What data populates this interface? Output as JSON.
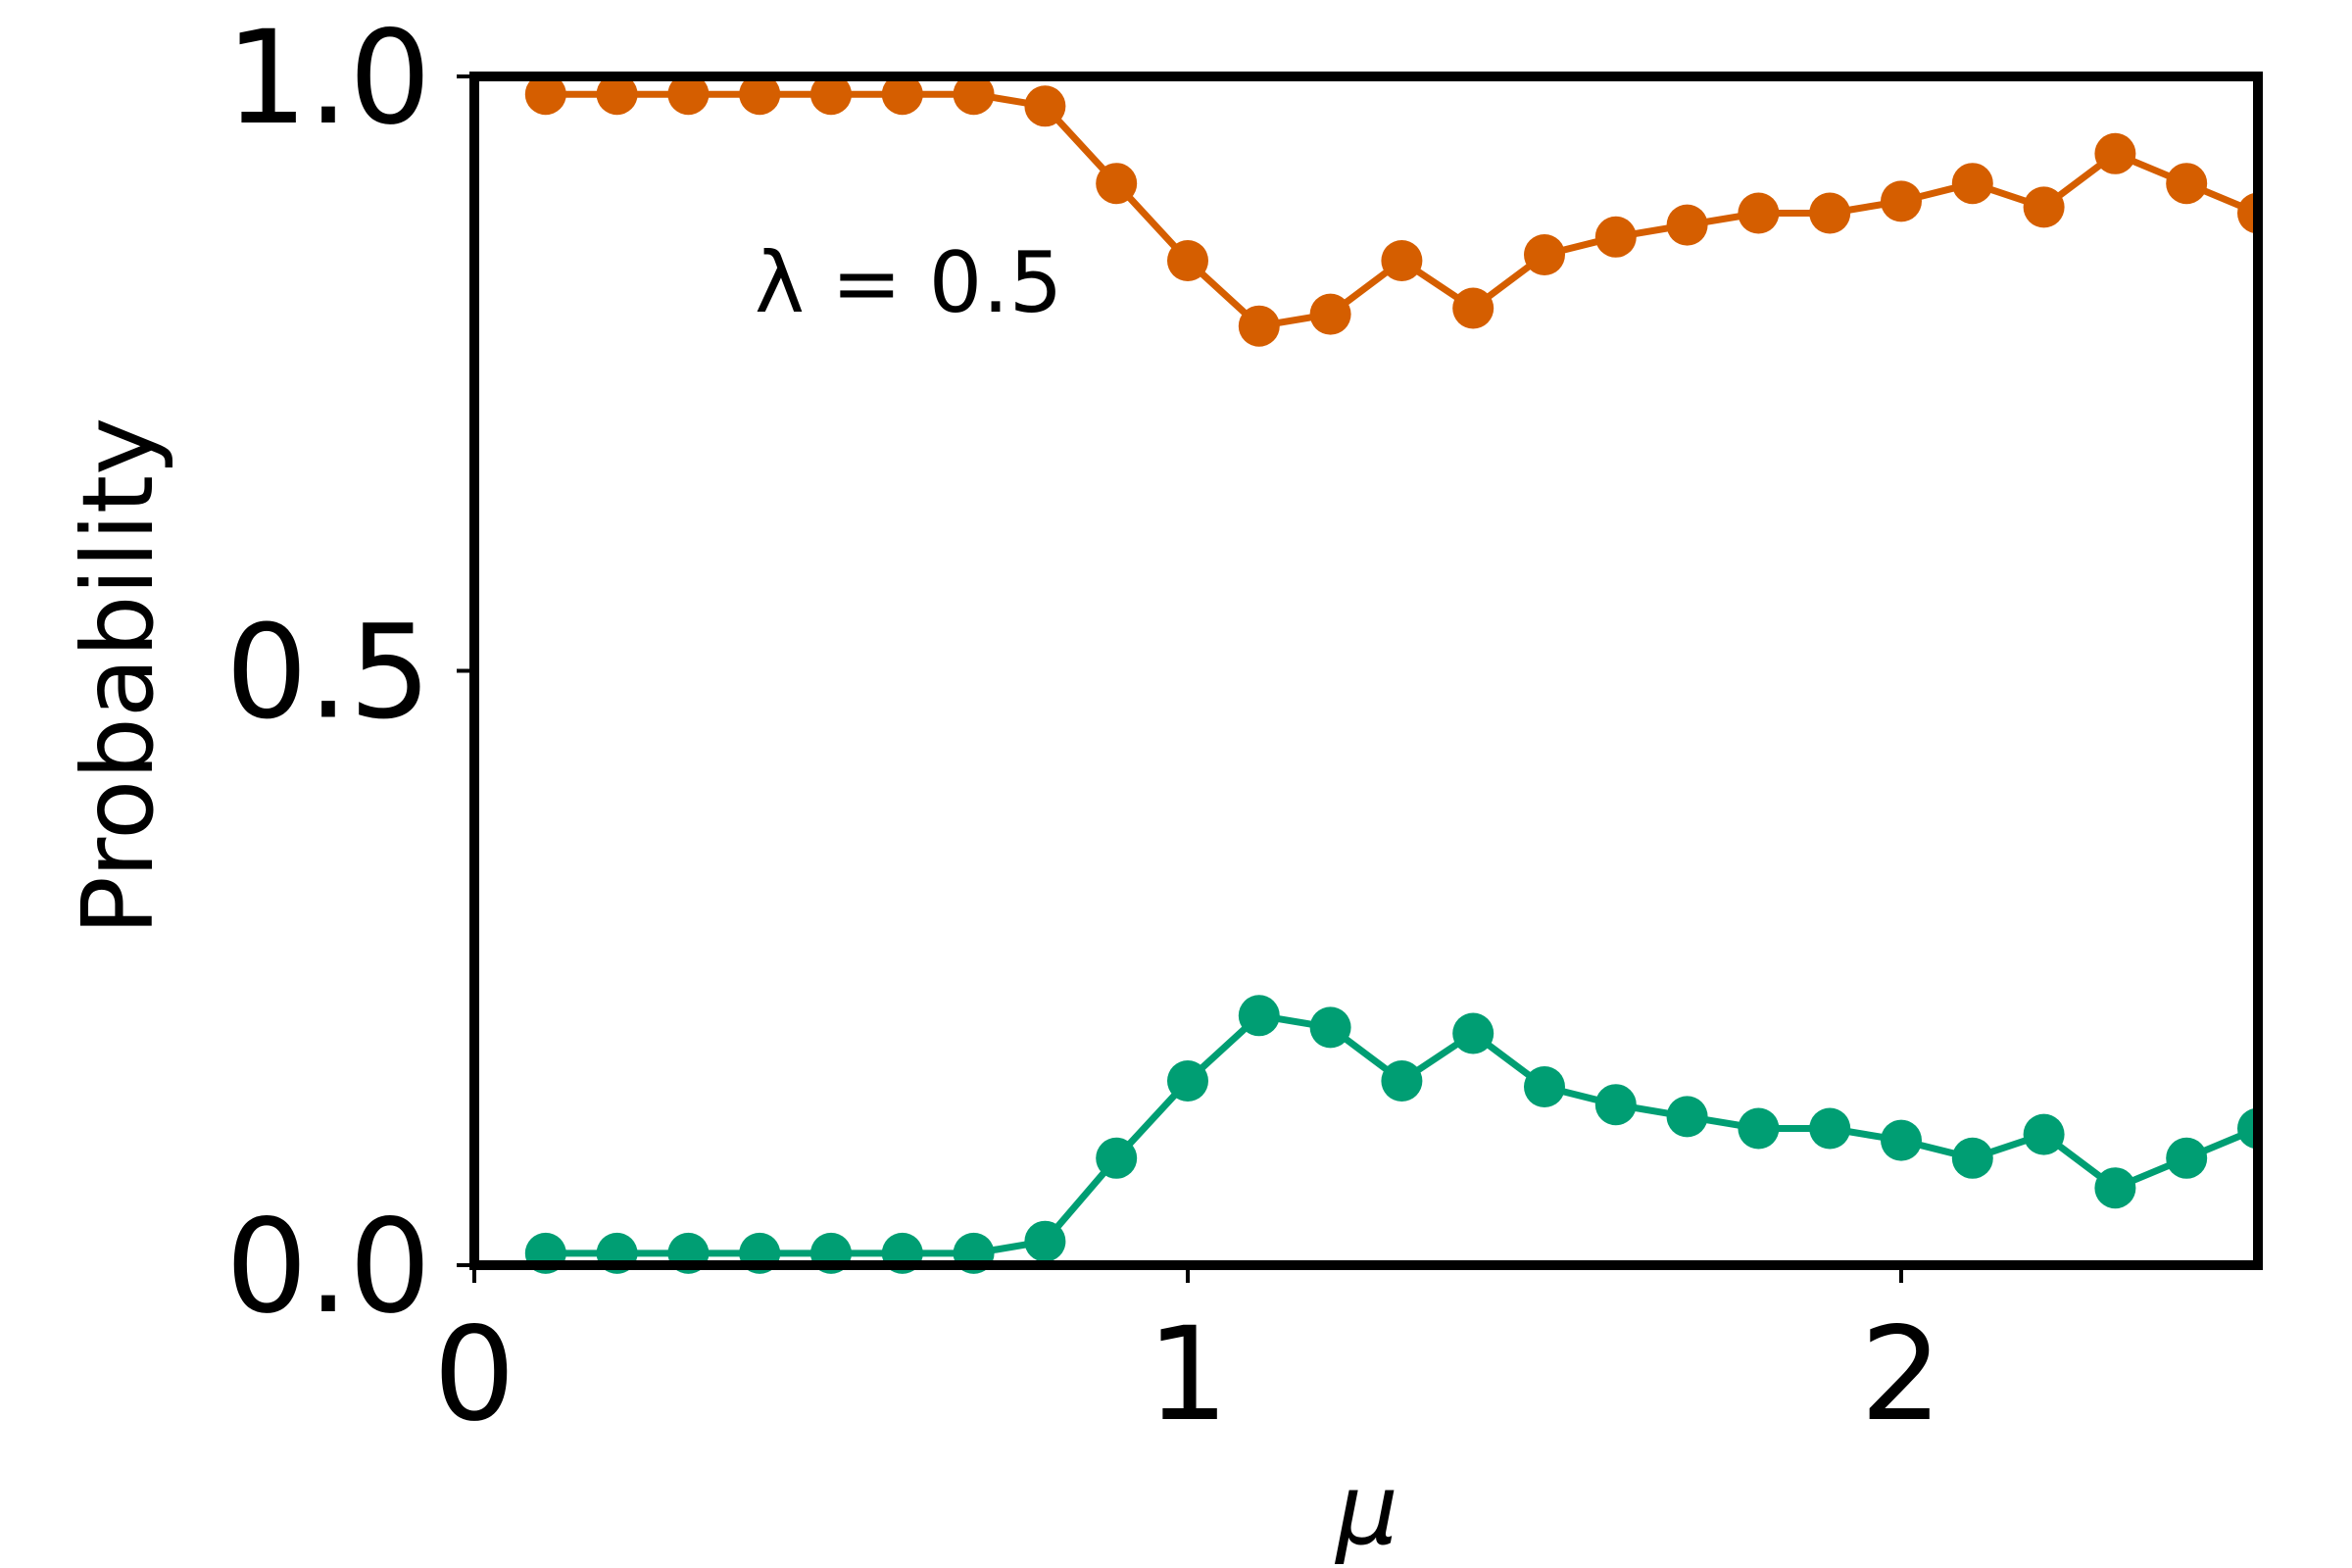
{
  "chart_data": {
    "type": "line",
    "title": "",
    "xlabel": "μ",
    "ylabel": "Probability",
    "xlim": [
      0,
      2.5
    ],
    "ylim": [
      0,
      1.0
    ],
    "xticks": [
      0,
      1,
      2
    ],
    "yticks": [
      0.0,
      0.5,
      1.0
    ],
    "xtick_labels": [
      "0",
      "1",
      "2"
    ],
    "ytick_labels": [
      "0.0",
      "0.5",
      "1.0"
    ],
    "grid": false,
    "legend": "none",
    "annotation": "λ = 0.5",
    "x": [
      0.1,
      0.2,
      0.3,
      0.4,
      0.5,
      0.6,
      0.7,
      0.8,
      0.9,
      1.0,
      1.1,
      1.2,
      1.3,
      1.4,
      1.5,
      1.6,
      1.7,
      1.8,
      1.9,
      2.0,
      2.1,
      2.2,
      2.3,
      2.4,
      2.5
    ],
    "series": [
      {
        "color": "#D55E00",
        "values": [
          0.985,
          0.985,
          0.985,
          0.985,
          0.985,
          0.985,
          0.985,
          0.975,
          0.91,
          0.845,
          0.79,
          0.8,
          0.845,
          0.805,
          0.85,
          0.865,
          0.875,
          0.885,
          0.885,
          0.895,
          0.91,
          0.89,
          0.935,
          0.91,
          0.885
        ]
      },
      {
        "color": "#009E73",
        "values": [
          0.01,
          0.01,
          0.01,
          0.01,
          0.01,
          0.01,
          0.01,
          0.02,
          0.09,
          0.155,
          0.21,
          0.2,
          0.155,
          0.195,
          0.15,
          0.135,
          0.125,
          0.115,
          0.115,
          0.105,
          0.09,
          0.11,
          0.065,
          0.09,
          0.115
        ]
      }
    ]
  }
}
